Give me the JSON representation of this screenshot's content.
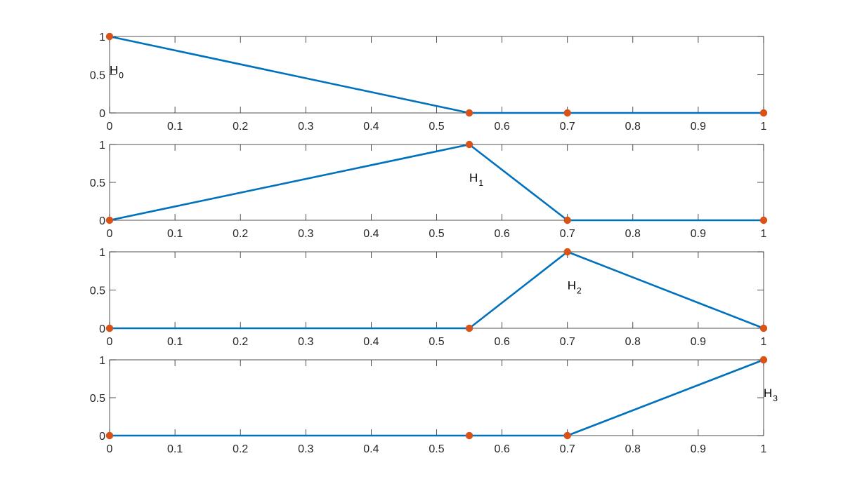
{
  "chart_data": [
    {
      "type": "line",
      "x": [
        0,
        0.55,
        0.7,
        1
      ],
      "series": [
        {
          "values": [
            1,
            0,
            0,
            0
          ]
        }
      ],
      "xlim": [
        0,
        1
      ],
      "ylim": [
        0,
        1
      ],
      "xticks": [
        "0",
        "0.1",
        "0.2",
        "0.3",
        "0.4",
        "0.5",
        "0.6",
        "0.7",
        "0.8",
        "0.9",
        "1"
      ],
      "yticks": [
        "0",
        "0.5",
        "1"
      ],
      "annotation": {
        "base": "H",
        "sub": "0",
        "x": 0,
        "y": 0.6
      },
      "grid": false
    },
    {
      "type": "line",
      "x": [
        0,
        0.55,
        0.7,
        1
      ],
      "series": [
        {
          "values": [
            0,
            1,
            0,
            0
          ]
        }
      ],
      "xlim": [
        0,
        1
      ],
      "ylim": [
        0,
        1
      ],
      "xticks": [
        "0",
        "0.1",
        "0.2",
        "0.3",
        "0.4",
        "0.5",
        "0.6",
        "0.7",
        "0.8",
        "0.9",
        "1"
      ],
      "yticks": [
        "0",
        "0.5",
        "1"
      ],
      "annotation": {
        "base": "H",
        "sub": "1",
        "x": 0.55,
        "y": 0.6
      },
      "grid": false
    },
    {
      "type": "line",
      "x": [
        0,
        0.55,
        0.7,
        1
      ],
      "series": [
        {
          "values": [
            0,
            0,
            1,
            0
          ]
        }
      ],
      "xlim": [
        0,
        1
      ],
      "ylim": [
        0,
        1
      ],
      "xticks": [
        "0",
        "0.1",
        "0.2",
        "0.3",
        "0.4",
        "0.5",
        "0.6",
        "0.7",
        "0.8",
        "0.9",
        "1"
      ],
      "yticks": [
        "0",
        "0.5",
        "1"
      ],
      "annotation": {
        "base": "H",
        "sub": "2",
        "x": 0.7,
        "y": 0.6
      },
      "grid": false
    },
    {
      "type": "line",
      "x": [
        0,
        0.55,
        0.7,
        1
      ],
      "series": [
        {
          "values": [
            0,
            0,
            0,
            1
          ]
        }
      ],
      "xlim": [
        0,
        1
      ],
      "ylim": [
        0,
        1
      ],
      "xticks": [
        "0",
        "0.1",
        "0.2",
        "0.3",
        "0.4",
        "0.5",
        "0.6",
        "0.7",
        "0.8",
        "0.9",
        "1"
      ],
      "yticks": [
        "0",
        "0.5",
        "1"
      ],
      "annotation": {
        "base": "H",
        "sub": "3",
        "x": 1,
        "y": 0.6
      },
      "grid": false
    }
  ],
  "colors": {
    "line": "#0072BD",
    "marker": "#D95319",
    "axis": "#262626"
  }
}
